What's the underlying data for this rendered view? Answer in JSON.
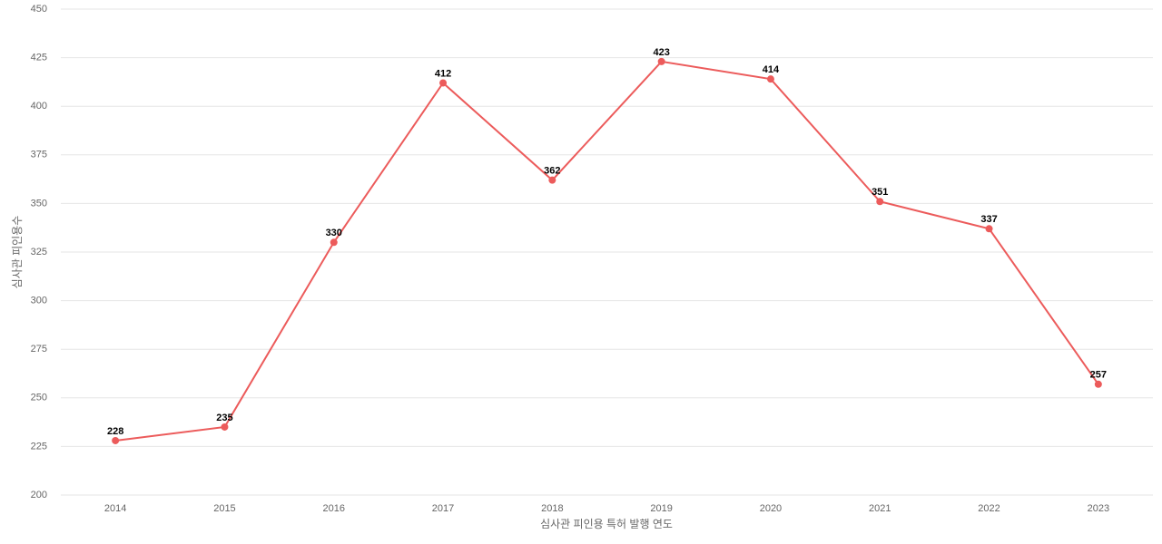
{
  "chart_data": {
    "type": "line",
    "x_label": "심사관 피인용 특허 발행 연도",
    "y_label": "심사관 피인용수",
    "categories": [
      "2014",
      "2015",
      "2016",
      "2017",
      "2018",
      "2019",
      "2020",
      "2021",
      "2022",
      "2023"
    ],
    "series": [
      {
        "name": "심사관 피인용수",
        "color": "#ec5b5b",
        "values": [
          228,
          235,
          330,
          412,
          362,
          423,
          414,
          351,
          337,
          257
        ]
      }
    ],
    "ylim": [
      200,
      450
    ],
    "yticks": [
      200,
      225,
      250,
      275,
      300,
      325,
      350,
      375,
      400,
      425,
      450
    ],
    "grid": true,
    "data_labels": true
  }
}
